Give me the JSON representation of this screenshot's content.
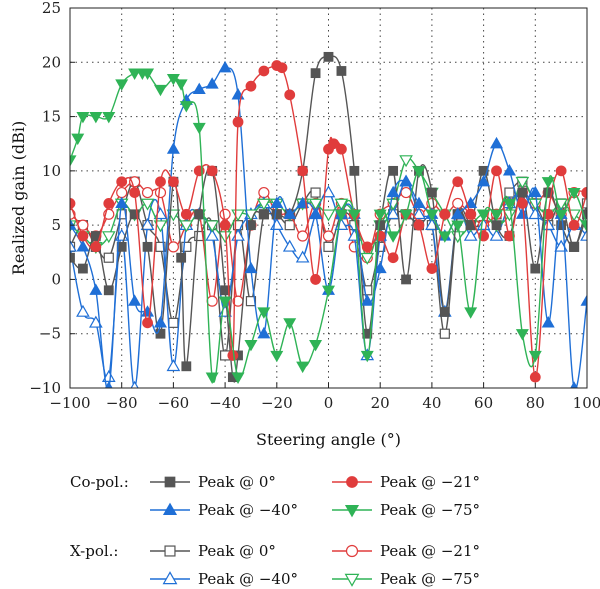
{
  "chart_data": {
    "type": "line",
    "title": "",
    "xlabel": "Steering angle (°)",
    "ylabel": "Realized gain (dBi)",
    "xlim": [
      -100,
      100
    ],
    "ylim": [
      -10,
      25
    ],
    "xticks": [
      -100,
      -80,
      -60,
      -40,
      -20,
      0,
      20,
      40,
      60,
      80,
      100
    ],
    "yticks": [
      -10,
      -5,
      0,
      5,
      10,
      15,
      20,
      25
    ],
    "grid": "dotted",
    "legend_groups": [
      {
        "label": "Co-pol.:",
        "series_refs": [
          0,
          1,
          2,
          3
        ]
      },
      {
        "label": "X-pol.:",
        "series_refs": [
          4,
          5,
          6,
          7
        ]
      }
    ],
    "series": [
      {
        "name": "Peak @ 0°",
        "group": "Co-pol.",
        "color": "#555555",
        "marker": "square-filled",
        "x": [
          -100,
          -95,
          -90,
          -85,
          -80,
          -75,
          -70,
          -65,
          -60,
          -57,
          -55,
          -50,
          -45,
          -40,
          -37,
          -35,
          -30,
          -25,
          -20,
          -15,
          -10,
          -5,
          0,
          5,
          10,
          15,
          20,
          25,
          30,
          35,
          40,
          45,
          50,
          55,
          60,
          65,
          70,
          75,
          80,
          85,
          90,
          95,
          100
        ],
        "y": [
          2,
          1,
          4,
          -1,
          3,
          6,
          3,
          -5,
          9,
          2,
          -8,
          6,
          10,
          -1,
          -9,
          -7,
          5,
          6,
          6,
          6,
          10,
          19,
          20.5,
          19.2,
          10,
          -5,
          5,
          10,
          0,
          10,
          8,
          -3,
          6,
          5,
          10,
          5,
          4,
          8,
          1,
          8,
          5,
          3,
          6
        ]
      },
      {
        "name": "Peak @ −21°",
        "group": "Co-pol.",
        "color": "#e03c3c",
        "marker": "circle-filled",
        "x": [
          -100,
          -95,
          -90,
          -85,
          -80,
          -75,
          -70,
          -65,
          -60,
          -55,
          -50,
          -45,
          -40,
          -37,
          -35,
          -30,
          -25,
          -20,
          -18,
          -15,
          -10,
          -5,
          0,
          2,
          5,
          10,
          15,
          20,
          25,
          30,
          35,
          40,
          45,
          50,
          55,
          60,
          65,
          70,
          75,
          80,
          85,
          90,
          95,
          100
        ],
        "y": [
          7,
          4,
          3,
          7,
          9,
          8,
          -4,
          9,
          9,
          6,
          10,
          10,
          5,
          -7,
          14.5,
          17.8,
          19.2,
          19.7,
          19.5,
          17,
          10,
          0,
          12,
          12.5,
          12,
          6,
          3,
          4,
          2,
          6,
          5,
          1,
          6,
          9,
          6,
          4,
          10,
          4,
          7,
          -9,
          6,
          10,
          5,
          8
        ]
      },
      {
        "name": "Peak @ −40°",
        "group": "Co-pol.",
        "color": "#1f6fd6",
        "marker": "triangle-up-filled",
        "x": [
          -100,
          -95,
          -90,
          -85,
          -80,
          -75,
          -70,
          -65,
          -60,
          -55,
          -50,
          -45,
          -40,
          -35,
          -30,
          -25,
          -20,
          -15,
          -10,
          -5,
          0,
          5,
          10,
          15,
          20,
          25,
          30,
          35,
          40,
          45,
          50,
          55,
          60,
          65,
          70,
          75,
          80,
          85,
          90,
          95,
          100
        ],
        "y": [
          5,
          3,
          -1,
          -10,
          7,
          -2,
          -3,
          -4,
          12,
          16.5,
          17.5,
          18,
          19.5,
          17,
          1,
          -5,
          7,
          6,
          7,
          6,
          -1,
          6,
          6,
          -2,
          1,
          8,
          9,
          7,
          6,
          4,
          6,
          7,
          9,
          12.5,
          10,
          6,
          8,
          -4,
          6,
          -10,
          -2
        ]
      },
      {
        "name": "Peak @ −75°",
        "group": "Co-pol.",
        "color": "#2fb356",
        "marker": "triangle-down-filled",
        "x": [
          -100,
          -97,
          -95,
          -90,
          -85,
          -80,
          -75,
          -72,
          -70,
          -65,
          -60,
          -57,
          -55,
          -50,
          -45,
          -40,
          -35,
          -30,
          -25,
          -20,
          -15,
          -10,
          -5,
          0,
          5,
          10,
          15,
          20,
          25,
          30,
          35,
          40,
          45,
          50,
          55,
          60,
          65,
          70,
          75,
          80,
          85,
          90,
          95,
          100
        ],
        "y": [
          11,
          13,
          15,
          15,
          15,
          18,
          19,
          19,
          19,
          17.5,
          18.5,
          18,
          16,
          14,
          -9,
          -2,
          -9,
          -6,
          -3,
          -7,
          -4,
          -8,
          -6,
          -1,
          6,
          6,
          -7,
          6,
          4,
          6,
          10,
          6,
          4,
          5,
          -3,
          6,
          6,
          7,
          -5,
          -7,
          9,
          6,
          8,
          5
        ]
      },
      {
        "name": "Peak @ 0°",
        "group": "X-pol.",
        "color": "#555555",
        "marker": "square-open",
        "x": [
          -100,
          -95,
          -90,
          -85,
          -80,
          -75,
          -70,
          -65,
          -60,
          -55,
          -50,
          -45,
          -40,
          -35,
          -30,
          -25,
          -20,
          -15,
          -10,
          -5,
          0,
          5,
          10,
          15,
          20,
          25,
          30,
          35,
          40,
          45,
          50,
          55,
          60,
          65,
          70,
          75,
          80,
          85,
          90,
          95,
          100
        ],
        "y": [
          3,
          5,
          3,
          2,
          6,
          9,
          5,
          3,
          -4,
          3,
          4,
          5,
          -7,
          5,
          -2,
          6,
          6,
          5,
          7,
          8,
          3,
          6,
          5,
          -1,
          3,
          6,
          6,
          5,
          5,
          -5,
          6,
          5,
          5,
          6,
          8,
          9,
          7,
          5,
          7,
          3,
          7
        ]
      },
      {
        "name": "Peak @ −21°",
        "group": "X-pol.",
        "color": "#e03c3c",
        "marker": "circle-open",
        "x": [
          -100,
          -95,
          -90,
          -85,
          -80,
          -75,
          -70,
          -65,
          -60,
          -55,
          -50,
          -45,
          -40,
          -35,
          -30,
          -25,
          -20,
          -15,
          -10,
          -5,
          0,
          5,
          10,
          15,
          20,
          25,
          30,
          35,
          40,
          45,
          50,
          55,
          60,
          65,
          70,
          75,
          80,
          85,
          90,
          95,
          100
        ],
        "y": [
          6,
          5,
          4,
          6,
          8,
          9,
          8,
          8,
          3,
          5,
          6,
          -2,
          6,
          -2,
          5,
          8,
          6,
          6,
          4,
          7,
          4,
          7,
          3,
          2,
          6,
          7,
          8,
          6,
          7,
          6,
          7,
          6,
          5,
          6,
          7,
          8,
          7,
          8,
          6,
          8,
          8
        ]
      },
      {
        "name": "Peak @ −40°",
        "group": "X-pol.",
        "color": "#1f6fd6",
        "marker": "triangle-up-open",
        "x": [
          -100,
          -95,
          -90,
          -85,
          -80,
          -75,
          -70,
          -65,
          -60,
          -55,
          -50,
          -45,
          -40,
          -35,
          -30,
          -25,
          -20,
          -15,
          -10,
          -5,
          0,
          5,
          10,
          15,
          20,
          25,
          30,
          35,
          40,
          45,
          50,
          55,
          60,
          65,
          70,
          75,
          80,
          85,
          90,
          95,
          100
        ],
        "y": [
          3,
          -3,
          -4,
          -9,
          4,
          -10,
          5,
          6,
          -8,
          5,
          6,
          4,
          -3,
          4,
          6,
          7,
          5,
          3,
          2,
          6,
          8,
          5,
          4,
          -7,
          4,
          6,
          9,
          6,
          5,
          -3,
          6,
          4,
          5,
          4,
          7,
          8,
          6,
          5,
          3,
          5,
          4
        ]
      },
      {
        "name": "Peak @ −75°",
        "group": "X-pol.",
        "color": "#2fb356",
        "marker": "triangle-down-open",
        "x": [
          -100,
          -95,
          -90,
          -85,
          -80,
          -75,
          -70,
          -65,
          -60,
          -55,
          -50,
          -45,
          -40,
          -35,
          -30,
          -25,
          -20,
          -15,
          -10,
          -5,
          0,
          5,
          10,
          15,
          20,
          25,
          30,
          35,
          40,
          45,
          50,
          55,
          60,
          65,
          70,
          75,
          80,
          85,
          90,
          95,
          100
        ],
        "y": [
          5,
          4,
          3,
          4,
          7,
          6,
          7,
          5,
          6,
          5,
          6,
          5,
          4,
          6,
          6,
          7,
          7,
          6,
          7,
          7,
          6,
          7,
          6,
          2,
          5,
          7,
          11,
          10,
          8,
          6,
          4,
          5,
          6,
          5,
          6,
          9,
          7,
          6,
          7,
          6,
          5
        ]
      }
    ]
  }
}
